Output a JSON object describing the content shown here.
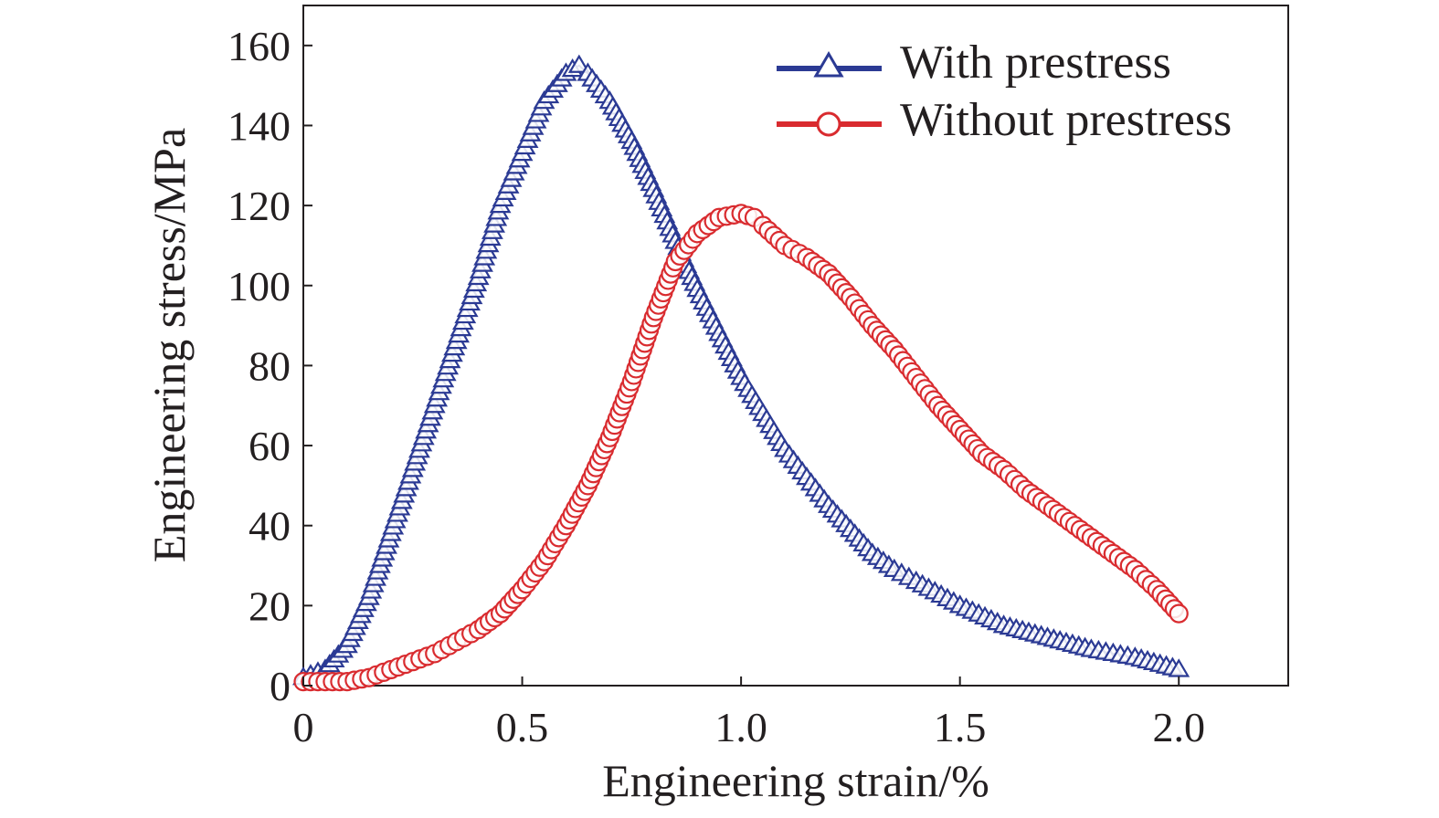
{
  "chart_data": {
    "type": "scatter",
    "xlabel": "Engineering strain/%",
    "ylabel": "Engineering stress/MPa",
    "xlim": [
      0,
      2.25
    ],
    "ylim": [
      0,
      170
    ],
    "xticks": [
      0,
      0.5,
      1.0,
      1.5,
      2.0
    ],
    "xtick_labels": [
      "0",
      "0.5",
      "1.0",
      "1.5",
      "2.0"
    ],
    "yticks": [
      0,
      20,
      40,
      60,
      80,
      100,
      120,
      140,
      160
    ],
    "ytick_labels": [
      "0",
      "20",
      "40",
      "60",
      "80",
      "100",
      "120",
      "140",
      "160"
    ],
    "grid": false,
    "legend_position": "top-right",
    "series": [
      {
        "name": "With prestress",
        "color": "#2b3a94",
        "marker": "open-triangle",
        "x": [
          0,
          0.05,
          0.1,
          0.15,
          0.2,
          0.25,
          0.3,
          0.35,
          0.4,
          0.45,
          0.5,
          0.55,
          0.6,
          0.63,
          0.65,
          0.7,
          0.75,
          0.8,
          0.85,
          0.9,
          0.95,
          1.0,
          1.05,
          1.1,
          1.15,
          1.2,
          1.25,
          1.3,
          1.35,
          1.4,
          1.5,
          1.6,
          1.7,
          1.8,
          1.9,
          2.0
        ],
        "y": [
          2,
          4,
          10,
          22,
          38,
          54,
          70,
          86,
          102,
          120,
          133,
          146,
          153,
          155,
          153,
          146,
          136,
          124,
          111,
          99,
          88,
          77,
          68,
          59,
          52,
          45,
          39,
          33,
          29,
          26,
          20,
          15,
          12,
          9,
          7,
          4
        ]
      },
      {
        "name": "Without prestress",
        "color": "#d92b2f",
        "marker": "open-circle",
        "x": [
          0,
          0.05,
          0.1,
          0.15,
          0.2,
          0.25,
          0.3,
          0.35,
          0.4,
          0.45,
          0.5,
          0.55,
          0.6,
          0.65,
          0.7,
          0.75,
          0.8,
          0.85,
          0.9,
          0.95,
          1.0,
          1.03,
          1.05,
          1.1,
          1.15,
          1.2,
          1.25,
          1.3,
          1.35,
          1.4,
          1.45,
          1.5,
          1.55,
          1.6,
          1.65,
          1.7,
          1.75,
          1.8,
          1.85,
          1.9,
          1.95,
          2.0
        ],
        "y": [
          1,
          1,
          1,
          2,
          4,
          6,
          8,
          11,
          14,
          18,
          24,
          31,
          40,
          50,
          62,
          76,
          92,
          106,
          113,
          117,
          118,
          117,
          115,
          110,
          107,
          103,
          97,
          90,
          84,
          77,
          70,
          64,
          58,
          54,
          49,
          45,
          41,
          37,
          33,
          29,
          24,
          18
        ]
      }
    ]
  }
}
